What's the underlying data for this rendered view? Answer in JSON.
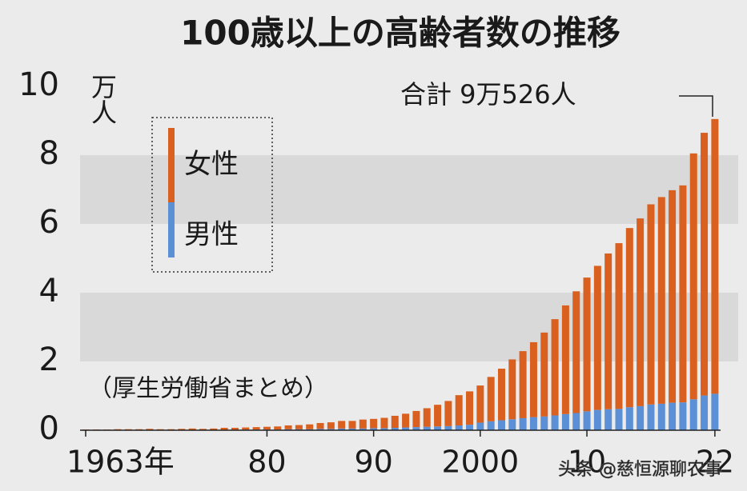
{
  "chart_data": {
    "type": "stacked-bar",
    "title": "100歳以上の高齢者数の推移",
    "y_unit": "万人",
    "annotation": "合計 9万526人",
    "source_note": "（厚生労働省まとめ）",
    "watermark": "头条 @慈恒源聊农事",
    "categories": [
      "1963年",
      null,
      null,
      null,
      null,
      null,
      null,
      null,
      null,
      null,
      null,
      null,
      null,
      null,
      null,
      null,
      null,
      "80",
      null,
      null,
      null,
      null,
      null,
      null,
      null,
      null,
      null,
      "90",
      null,
      null,
      null,
      null,
      null,
      null,
      null,
      null,
      null,
      "2000",
      null,
      null,
      null,
      null,
      null,
      null,
      null,
      null,
      null,
      "10",
      null,
      null,
      null,
      null,
      null,
      null,
      null,
      null,
      null,
      null,
      null,
      "22"
    ],
    "series": [
      {
        "name": "男性",
        "color": "#5b8fd6",
        "values": [
          0.0,
          0.0,
          0.0,
          0.0,
          0.0,
          0.01,
          0.01,
          0.01,
          0.01,
          0.01,
          0.01,
          0.01,
          0.01,
          0.01,
          0.01,
          0.02,
          0.02,
          0.02,
          0.02,
          0.03,
          0.03,
          0.03,
          0.04,
          0.04,
          0.05,
          0.05,
          0.05,
          0.06,
          0.06,
          0.07,
          0.08,
          0.09,
          0.1,
          0.11,
          0.12,
          0.14,
          0.16,
          0.22,
          0.26,
          0.29,
          0.32,
          0.35,
          0.38,
          0.4,
          0.43,
          0.47,
          0.5,
          0.55,
          0.59,
          0.61,
          0.62,
          0.67,
          0.7,
          0.75,
          0.77,
          0.8,
          0.81,
          0.9,
          1.01,
          1.06
        ]
      },
      {
        "name": "女性",
        "color": "#d9601e",
        "values": [
          0.02,
          0.02,
          0.02,
          0.03,
          0.03,
          0.02,
          0.03,
          0.02,
          0.02,
          0.03,
          0.04,
          0.03,
          0.04,
          0.06,
          0.06,
          0.06,
          0.07,
          0.08,
          0.09,
          0.11,
          0.12,
          0.14,
          0.17,
          0.19,
          0.22,
          0.22,
          0.26,
          0.27,
          0.3,
          0.35,
          0.4,
          0.47,
          0.54,
          0.63,
          0.73,
          0.88,
          0.97,
          1.08,
          1.29,
          1.5,
          1.74,
          1.95,
          2.18,
          2.44,
          2.8,
          3.16,
          3.54,
          3.89,
          4.19,
          4.53,
          4.82,
          5.21,
          5.46,
          5.82,
          6.01,
          6.18,
          6.31,
          7.15,
          7.64,
          7.99
        ]
      }
    ],
    "ylim": [
      0,
      10
    ],
    "yticks": [
      0,
      2,
      4,
      6,
      8,
      10
    ],
    "grid": "bands"
  }
}
